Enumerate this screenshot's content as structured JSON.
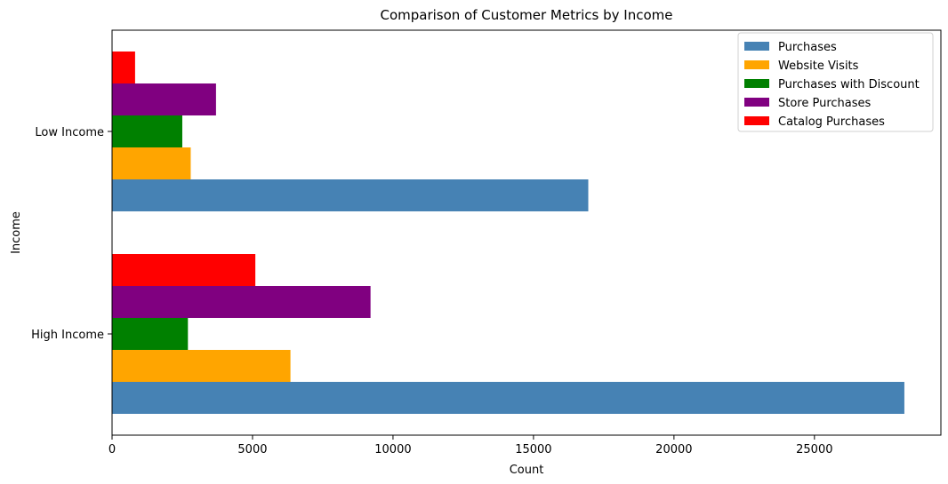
{
  "chart_data": {
    "type": "bar",
    "orientation": "horizontal",
    "title": "Comparison of Customer Metrics by Income",
    "xlabel": "Count",
    "ylabel": "Income",
    "categories": [
      "High Income",
      "Low Income"
    ],
    "xlim": [
      0,
      29500
    ],
    "xticks": [
      0,
      5000,
      10000,
      15000,
      20000,
      25000
    ],
    "grid": false,
    "legend_position": "top-right",
    "series": [
      {
        "name": "Purchases",
        "color": "#4682b4",
        "values": [
          28200,
          16950
        ]
      },
      {
        "name": "Website Visits",
        "color": "#ffa500",
        "values": [
          6350,
          2800
        ]
      },
      {
        "name": "Purchases with Discount",
        "color": "#008000",
        "values": [
          2700,
          2500
        ]
      },
      {
        "name": "Store Purchases",
        "color": "#800080",
        "values": [
          9200,
          3700
        ]
      },
      {
        "name": "Catalog Purchases",
        "color": "#ff0000",
        "values": [
          5100,
          820
        ]
      }
    ]
  }
}
